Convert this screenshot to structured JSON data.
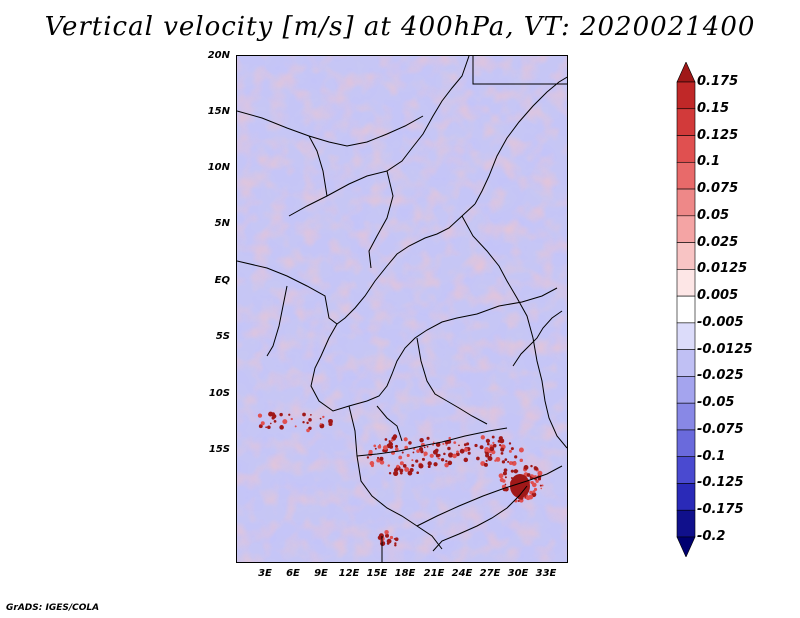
{
  "title": "Vertical velocity [m/s] at 400hPa, VT: 2020021400",
  "lat_labels": [
    "20N",
    "15N",
    "10N",
    "5N",
    "EQ",
    "5S",
    "10S",
    "15S"
  ],
  "lon_labels": [
    "3E",
    "6E",
    "9E",
    "12E",
    "15E",
    "18E",
    "21E",
    "24E",
    "27E",
    "30E",
    "33E"
  ],
  "colorbar": {
    "levels": [
      "0.175",
      "0.15",
      "0.125",
      "0.1",
      "0.075",
      "0.05",
      "0.025",
      "0.0125",
      "0.005",
      "-0.005",
      "-0.0125",
      "-0.025",
      "-0.05",
      "-0.075",
      "-0.1",
      "-0.125",
      "-0.175",
      "-0.2"
    ],
    "colors": [
      "#a01818",
      "#c02828",
      "#d23a3a",
      "#e05050",
      "#e86a6a",
      "#ee8888",
      "#f4a4a4",
      "#f8c4c4",
      "#fde6e6",
      "#ffffff",
      "#dcdcfa",
      "#c0c0f4",
      "#a4a4ee",
      "#8888e6",
      "#6a6adc",
      "#4a4ad0",
      "#2a2ab8",
      "#10108c",
      "#000070"
    ]
  },
  "credit": "GrADS: IGES/COLA"
}
